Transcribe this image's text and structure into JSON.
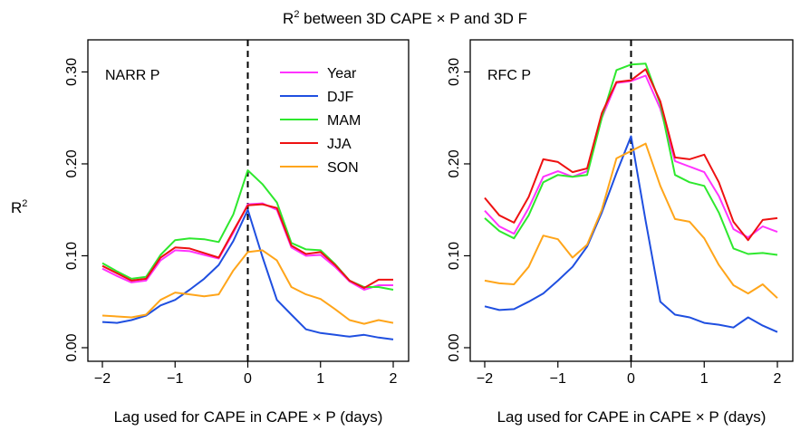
{
  "figure": {
    "title_main": "R",
    "title_sup": "2",
    "title_rest": " between 3D CAPE × P and 3D F",
    "ylabel_main": "R",
    "ylabel_sup": "2"
  },
  "chart_data": [
    {
      "type": "line",
      "panel_label": "NARR P",
      "xlabel": "Lag used for CAPE in CAPE × P  (days)",
      "xlim": [
        -2,
        2
      ],
      "ylim": [
        0,
        0.33
      ],
      "x_ticks": [
        "−2",
        "−1",
        "0",
        "1",
        "2"
      ],
      "y_ticks": [
        "0.00",
        "0.10",
        "0.20",
        "0.30"
      ],
      "vline_x": 0,
      "legend_position": "top-right",
      "x": [
        -2.0,
        -1.8,
        -1.6,
        -1.4,
        -1.2,
        -1.0,
        -0.8,
        -0.6,
        -0.4,
        -0.2,
        0.0,
        0.2,
        0.4,
        0.6,
        0.8,
        1.0,
        1.2,
        1.4,
        1.6,
        1.8,
        2.0
      ],
      "series": [
        {
          "name": "Year",
          "color": "#ff33ff",
          "values": [
            0.086,
            0.078,
            0.071,
            0.073,
            0.095,
            0.106,
            0.105,
            0.101,
            0.097,
            0.125,
            0.156,
            0.157,
            0.15,
            0.109,
            0.1,
            0.101,
            0.088,
            0.072,
            0.063,
            0.068,
            0.068
          ]
        },
        {
          "name": "DJF",
          "color": "#1f4fe0",
          "values": [
            0.028,
            0.027,
            0.03,
            0.035,
            0.046,
            0.052,
            0.063,
            0.075,
            0.09,
            0.116,
            0.15,
            0.099,
            0.052,
            0.036,
            0.02,
            0.016,
            0.014,
            0.012,
            0.014,
            0.011,
            0.009
          ]
        },
        {
          "name": "MAM",
          "color": "#2ee82e",
          "values": [
            0.092,
            0.083,
            0.075,
            0.077,
            0.101,
            0.117,
            0.119,
            0.118,
            0.115,
            0.145,
            0.193,
            0.178,
            0.158,
            0.114,
            0.107,
            0.106,
            0.091,
            0.073,
            0.066,
            0.066,
            0.063
          ]
        },
        {
          "name": "JJA",
          "color": "#ee1111",
          "values": [
            0.089,
            0.081,
            0.073,
            0.075,
            0.098,
            0.109,
            0.108,
            0.103,
            0.098,
            0.127,
            0.155,
            0.156,
            0.152,
            0.111,
            0.102,
            0.104,
            0.09,
            0.073,
            0.065,
            0.074,
            0.074
          ]
        },
        {
          "name": "SON",
          "color": "#ffa51a",
          "values": [
            0.035,
            0.034,
            0.033,
            0.036,
            0.052,
            0.06,
            0.058,
            0.056,
            0.058,
            0.084,
            0.104,
            0.106,
            0.095,
            0.066,
            0.058,
            0.053,
            0.042,
            0.03,
            0.026,
            0.03,
            0.027
          ]
        }
      ]
    },
    {
      "type": "line",
      "panel_label": "RFC P",
      "xlabel": "Lag used for CAPE in CAPE × P  (days)",
      "xlim": [
        -2,
        2
      ],
      "ylim": [
        0,
        0.33
      ],
      "x_ticks": [
        "−2",
        "−1",
        "0",
        "1",
        "2"
      ],
      "y_ticks": [
        "0.00",
        "0.10",
        "0.20",
        "0.30"
      ],
      "vline_x": 0,
      "x": [
        -2.0,
        -1.8,
        -1.6,
        -1.4,
        -1.2,
        -1.0,
        -0.8,
        -0.6,
        -0.4,
        -0.2,
        0.0,
        0.2,
        0.4,
        0.6,
        0.8,
        1.0,
        1.2,
        1.4,
        1.6,
        1.8,
        2.0
      ],
      "series": [
        {
          "name": "Year",
          "color": "#ff33ff",
          "values": [
            0.149,
            0.132,
            0.124,
            0.152,
            0.186,
            0.192,
            0.186,
            0.192,
            0.25,
            0.288,
            0.29,
            0.296,
            0.26,
            0.203,
            0.197,
            0.191,
            0.165,
            0.129,
            0.12,
            0.132,
            0.126
          ]
        },
        {
          "name": "DJF",
          "color": "#1f4fe0",
          "values": [
            0.045,
            0.041,
            0.042,
            0.05,
            0.059,
            0.073,
            0.088,
            0.11,
            0.147,
            0.19,
            0.23,
            0.138,
            0.05,
            0.036,
            0.033,
            0.027,
            0.025,
            0.022,
            0.033,
            0.024,
            0.017
          ]
        },
        {
          "name": "MAM",
          "color": "#2ee82e",
          "values": [
            0.141,
            0.127,
            0.119,
            0.144,
            0.18,
            0.188,
            0.186,
            0.188,
            0.25,
            0.302,
            0.308,
            0.309,
            0.265,
            0.188,
            0.18,
            0.176,
            0.147,
            0.108,
            0.102,
            0.103,
            0.101
          ]
        },
        {
          "name": "JJA",
          "color": "#ee1111",
          "values": [
            0.163,
            0.144,
            0.136,
            0.164,
            0.205,
            0.202,
            0.191,
            0.195,
            0.255,
            0.289,
            0.291,
            0.303,
            0.268,
            0.207,
            0.205,
            0.21,
            0.18,
            0.137,
            0.117,
            0.139,
            0.141
          ]
        },
        {
          "name": "SON",
          "color": "#ffa51a",
          "values": [
            0.073,
            0.07,
            0.069,
            0.088,
            0.122,
            0.118,
            0.098,
            0.112,
            0.15,
            0.206,
            0.214,
            0.222,
            0.176,
            0.14,
            0.137,
            0.119,
            0.09,
            0.068,
            0.059,
            0.069,
            0.054
          ]
        }
      ]
    }
  ]
}
